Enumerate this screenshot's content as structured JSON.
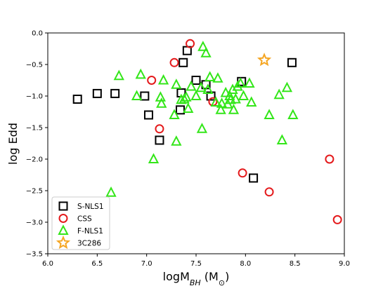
{
  "chart_data": {
    "type": "scatter",
    "xlabel": "logM",
    "xlabel_sub": "BH",
    "xlabel_unit": " (M",
    "xlabel_unit_sub": "⊙",
    "xlabel_close": ")",
    "ylabel": "log Edd",
    "xlim": [
      6.0,
      9.0
    ],
    "ylim": [
      -3.5,
      0.0
    ],
    "xticks": [
      6.0,
      6.5,
      7.0,
      7.5,
      8.0,
      8.5,
      9.0
    ],
    "xtick_labels": [
      "6.0",
      "6.5",
      "7.0",
      "7.5",
      "8.0",
      "8.5",
      "9.0"
    ],
    "yticks": [
      0.0,
      -0.5,
      -1.0,
      -1.5,
      -2.0,
      -2.5,
      -3.0,
      -3.5
    ],
    "ytick_labels": [
      "0.0",
      "−0.5",
      "−1.0",
      "−1.5",
      "−2.0",
      "−2.5",
      "−3.0",
      "−3.5"
    ],
    "legend_position": "lower-left",
    "grid": false,
    "series": [
      {
        "name": "S-NLS1",
        "marker": "square",
        "color": "#000000",
        "points": [
          [
            6.3,
            -1.05
          ],
          [
            6.5,
            -0.96
          ],
          [
            6.68,
            -0.96
          ],
          [
            6.98,
            -1.0
          ],
          [
            7.02,
            -1.3
          ],
          [
            7.13,
            -1.7
          ],
          [
            7.34,
            -1.22
          ],
          [
            7.35,
            -0.95
          ],
          [
            7.37,
            -0.47
          ],
          [
            7.41,
            -0.28
          ],
          [
            7.5,
            -0.75
          ],
          [
            7.6,
            -0.82
          ],
          [
            7.65,
            -1.0
          ],
          [
            7.96,
            -0.77
          ],
          [
            8.08,
            -2.3
          ],
          [
            8.47,
            -0.47
          ]
        ]
      },
      {
        "name": "CSS",
        "marker": "circle",
        "color": "#e41a1c",
        "points": [
          [
            7.05,
            -0.75
          ],
          [
            7.13,
            -1.52
          ],
          [
            7.28,
            -0.47
          ],
          [
            7.44,
            -0.17
          ],
          [
            7.67,
            -1.09
          ],
          [
            7.97,
            -2.22
          ],
          [
            8.24,
            -2.52
          ],
          [
            8.85,
            -2.0
          ],
          [
            8.93,
            -2.96
          ]
        ]
      },
      {
        "name": "F-NLS1",
        "marker": "triangle",
        "color": "#33e619",
        "points": [
          [
            6.64,
            -2.53
          ],
          [
            6.72,
            -0.68
          ],
          [
            6.9,
            -1.0
          ],
          [
            6.94,
            -0.66
          ],
          [
            7.07,
            -2.0
          ],
          [
            7.14,
            -1.02
          ],
          [
            7.15,
            -1.12
          ],
          [
            7.17,
            -0.75
          ],
          [
            7.28,
            -1.3
          ],
          [
            7.3,
            -1.72
          ],
          [
            7.3,
            -0.82
          ],
          [
            7.35,
            -1.06
          ],
          [
            7.38,
            -1.05
          ],
          [
            7.4,
            -1.02
          ],
          [
            7.42,
            -1.2
          ],
          [
            7.45,
            -0.85
          ],
          [
            7.5,
            -1.0
          ],
          [
            7.55,
            -0.87
          ],
          [
            7.56,
            -1.52
          ],
          [
            7.57,
            -0.22
          ],
          [
            7.6,
            -0.32
          ],
          [
            7.62,
            -0.9
          ],
          [
            7.64,
            -0.7
          ],
          [
            7.7,
            -1.1
          ],
          [
            7.72,
            -0.72
          ],
          [
            7.75,
            -1.22
          ],
          [
            7.76,
            -1.12
          ],
          [
            7.8,
            -0.95
          ],
          [
            7.82,
            -1.13
          ],
          [
            7.84,
            -1.0
          ],
          [
            7.85,
            -1.06
          ],
          [
            7.87,
            -0.9
          ],
          [
            7.88,
            -1.22
          ],
          [
            7.9,
            -1.05
          ],
          [
            7.92,
            -0.85
          ],
          [
            7.95,
            -0.8
          ],
          [
            7.98,
            -1.0
          ],
          [
            8.04,
            -0.8
          ],
          [
            8.06,
            -1.1
          ],
          [
            8.24,
            -1.3
          ],
          [
            8.34,
            -0.98
          ],
          [
            8.37,
            -1.7
          ],
          [
            8.42,
            -0.87
          ],
          [
            8.48,
            -1.3
          ]
        ]
      },
      {
        "name": "3C286",
        "marker": "star",
        "color": "#f5a623",
        "points": [
          [
            8.19,
            -0.43
          ]
        ]
      }
    ]
  }
}
